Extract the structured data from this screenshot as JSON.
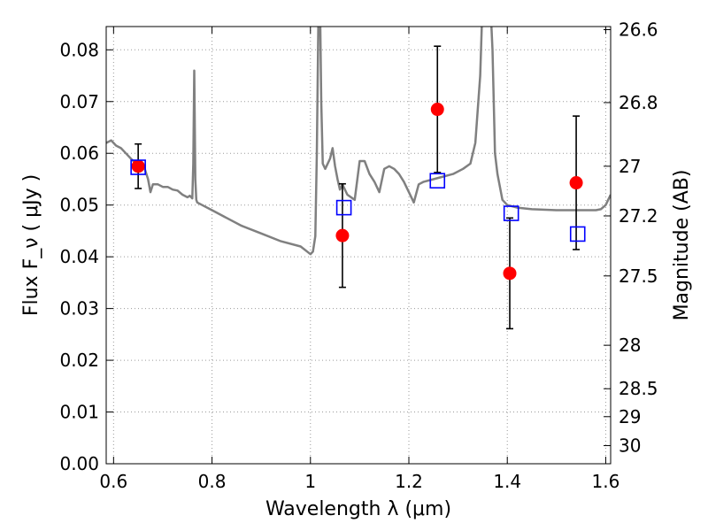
{
  "chart_data": {
    "type": "scatter",
    "xlabel": "Wavelength  λ (μm)",
    "ylabel": "Flux  F_ν  ( μJy )",
    "ylabel_right": "Magnitude (AB)",
    "xlim": [
      0.585,
      1.61
    ],
    "ylim": [
      0.0,
      0.0845
    ],
    "grid": true,
    "x_ticks": [
      0.6,
      0.8,
      1.0,
      1.2,
      1.4,
      1.6
    ],
    "x_tick_labels": [
      "0.6",
      "0.8",
      "1",
      "1.2",
      "1.4",
      "1.6"
    ],
    "y_ticks": [
      0.0,
      0.01,
      0.02,
      0.03,
      0.04,
      0.05,
      0.06,
      0.07,
      0.08
    ],
    "y_tick_labels": [
      "0.00",
      "0.01",
      "0.02",
      "0.03",
      "0.04",
      "0.05",
      "0.06",
      "0.07",
      "0.08"
    ],
    "right_ticks": [
      {
        "label": "26.6",
        "flux": 0.0839
      },
      {
        "label": "26.8",
        "flux": 0.0698
      },
      {
        "label": "27",
        "flux": 0.0575
      },
      {
        "label": "27.2",
        "flux": 0.0479
      },
      {
        "label": "27.5",
        "flux": 0.0363
      },
      {
        "label": "28",
        "flux": 0.0229
      },
      {
        "label": "28.5",
        "flux": 0.0145
      },
      {
        "label": "29",
        "flux": 0.0091
      },
      {
        "label": "30",
        "flux": 0.0035
      }
    ],
    "colors": {
      "model": "#808080",
      "observed": "#ff0000",
      "model_photometry": "#0000ff",
      "error_bar": "#000000",
      "grid": "#9a9a9a"
    },
    "series": [
      {
        "kind": "model_spectrum_line",
        "x": [
          0.585,
          0.595,
          0.605,
          0.615,
          0.625,
          0.635,
          0.645,
          0.655,
          0.66,
          0.665,
          0.67,
          0.675,
          0.68,
          0.69,
          0.7,
          0.71,
          0.72,
          0.73,
          0.74,
          0.75,
          0.755,
          0.76,
          0.762,
          0.764,
          0.766,
          0.768,
          0.77,
          0.78,
          0.8,
          0.83,
          0.86,
          0.9,
          0.94,
          0.98,
          1.0,
          1.005,
          1.01,
          1.013,
          1.016,
          1.018,
          1.02,
          1.022,
          1.025,
          1.03,
          1.04,
          1.045,
          1.05,
          1.055,
          1.06,
          1.065,
          1.075,
          1.09,
          1.1,
          1.11,
          1.12,
          1.13,
          1.14,
          1.15,
          1.16,
          1.17,
          1.18,
          1.19,
          1.2,
          1.21,
          1.22,
          1.23,
          1.25,
          1.27,
          1.29,
          1.31,
          1.325,
          1.335,
          1.345,
          1.35,
          1.355,
          1.36,
          1.365,
          1.37,
          1.375,
          1.38,
          1.39,
          1.4,
          1.42,
          1.45,
          1.5,
          1.55,
          1.58,
          1.59,
          1.6,
          1.605,
          1.61
        ],
        "y": [
          0.062,
          0.0625,
          0.0615,
          0.061,
          0.06,
          0.059,
          0.058,
          0.057,
          0.058,
          0.0565,
          0.055,
          0.0525,
          0.054,
          0.054,
          0.0535,
          0.0535,
          0.053,
          0.0528,
          0.052,
          0.0515,
          0.0518,
          0.0513,
          0.058,
          0.076,
          0.055,
          0.051,
          0.0505,
          0.05,
          0.049,
          0.0475,
          0.046,
          0.0445,
          0.043,
          0.042,
          0.0405,
          0.041,
          0.044,
          0.06,
          0.085,
          0.09,
          0.085,
          0.07,
          0.058,
          0.057,
          0.059,
          0.061,
          0.0575,
          0.055,
          0.053,
          0.054,
          0.052,
          0.051,
          0.0585,
          0.0585,
          0.056,
          0.0545,
          0.0525,
          0.057,
          0.0575,
          0.057,
          0.056,
          0.0545,
          0.0525,
          0.0505,
          0.054,
          0.0545,
          0.055,
          0.0555,
          0.056,
          0.057,
          0.058,
          0.062,
          0.075,
          0.09,
          0.09,
          0.09,
          0.09,
          0.08,
          0.06,
          0.056,
          0.051,
          0.05,
          0.0495,
          0.0492,
          0.049,
          0.049,
          0.049,
          0.0492,
          0.05,
          0.051,
          0.052
        ]
      },
      {
        "kind": "observed_points_with_errors",
        "points": [
          {
            "x": 0.65,
            "y": 0.0575,
            "err": 0.0043
          },
          {
            "x": 1.065,
            "y": 0.0441,
            "err": 0.01
          },
          {
            "x": 1.258,
            "y": 0.0685,
            "err": 0.0122
          },
          {
            "x": 1.405,
            "y": 0.0368,
            "err": 0.0107
          },
          {
            "x": 1.54,
            "y": 0.0543,
            "err": 0.0129
          }
        ]
      },
      {
        "kind": "model_photometry_squares",
        "points": [
          {
            "x": 0.65,
            "y": 0.0573
          },
          {
            "x": 1.068,
            "y": 0.0495
          },
          {
            "x": 1.258,
            "y": 0.0547
          },
          {
            "x": 1.408,
            "y": 0.0484
          },
          {
            "x": 1.543,
            "y": 0.0444
          }
        ]
      }
    ]
  }
}
